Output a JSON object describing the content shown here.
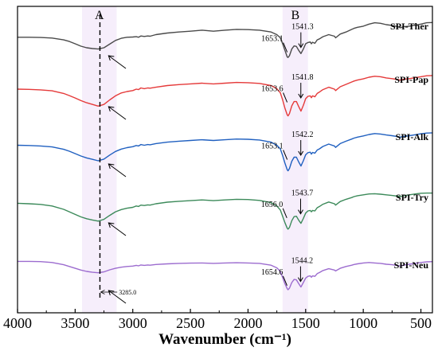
{
  "chart_data": {
    "type": "line",
    "xlabel": "Wavenumber (cm⁻¹)",
    "xlim": [
      4000,
      400
    ],
    "x_reversed": true,
    "xticks": [
      4000,
      3500,
      3000,
      2500,
      2000,
      1500,
      1000,
      500
    ],
    "y_ticks_shown": false,
    "band_labels": [
      "A",
      "B"
    ],
    "bands_cm": [
      [
        3440,
        3140
      ],
      [
        1700,
        1480
      ]
    ],
    "dashed_line_x": 3285,
    "annotation": "3285.0",
    "series": [
      {
        "name": "SPI-Ther",
        "color": "#4a4a4a",
        "peaks": [
          1653.1,
          1541.3
        ],
        "x": [
          4000,
          3900,
          3800,
          3700,
          3600,
          3550,
          3500,
          3450,
          3400,
          3350,
          3300,
          3250,
          3200,
          3150,
          3100,
          3050,
          3000,
          2970,
          2950,
          2930,
          2900,
          2870,
          2850,
          2800,
          2700,
          2600,
          2500,
          2400,
          2300,
          2200,
          2100,
          2000,
          1900,
          1800,
          1750,
          1720,
          1700,
          1680,
          1660,
          1653,
          1640,
          1620,
          1600,
          1580,
          1560,
          1541,
          1520,
          1500,
          1480,
          1460,
          1450,
          1440,
          1420,
          1400,
          1380,
          1350,
          1300,
          1250,
          1240,
          1200,
          1150,
          1100,
          1080,
          1050,
          1000,
          950,
          900,
          850,
          800,
          750,
          700,
          680,
          650,
          600,
          550,
          500,
          450,
          400
        ],
        "y": [
          0.6,
          0.6,
          0.61,
          0.63,
          0.7,
          0.76,
          0.85,
          0.94,
          1.0,
          1.03,
          1.05,
          1.0,
          0.86,
          0.72,
          0.64,
          0.6,
          0.59,
          0.58,
          0.6,
          0.55,
          0.57,
          0.55,
          0.56,
          0.5,
          0.44,
          0.4,
          0.37,
          0.33,
          0.37,
          0.33,
          0.3,
          0.31,
          0.33,
          0.4,
          0.5,
          0.62,
          0.85,
          1.1,
          1.35,
          1.37,
          1.3,
          1.05,
          0.93,
          0.95,
          1.1,
          1.22,
          1.05,
          0.85,
          0.8,
          0.78,
          0.85,
          0.79,
          0.83,
          0.7,
          0.66,
          0.58,
          0.5,
          0.56,
          0.62,
          0.48,
          0.4,
          0.3,
          0.26,
          0.22,
          0.18,
          0.1,
          0.05,
          0.07,
          0.12,
          0.15,
          0.2,
          0.24,
          0.2,
          0.18,
          0.14,
          0.1,
          0.05,
          0.04
        ]
      },
      {
        "name": "SPI-Pap",
        "color": "#e53a3a",
        "peaks": [
          1653.6,
          1541.8
        ],
        "x": [
          4000,
          3900,
          3800,
          3700,
          3600,
          3550,
          3500,
          3450,
          3400,
          3350,
          3300,
          3250,
          3200,
          3150,
          3100,
          3050,
          3000,
          2970,
          2950,
          2930,
          2900,
          2870,
          2850,
          2800,
          2700,
          2600,
          2500,
          2400,
          2300,
          2200,
          2100,
          2000,
          1900,
          1800,
          1750,
          1720,
          1700,
          1680,
          1660,
          1653,
          1640,
          1620,
          1600,
          1580,
          1560,
          1541,
          1520,
          1500,
          1480,
          1460,
          1450,
          1440,
          1420,
          1400,
          1380,
          1350,
          1300,
          1250,
          1240,
          1200,
          1150,
          1100,
          1080,
          1050,
          1000,
          950,
          900,
          850,
          800,
          750,
          700,
          680,
          650,
          600,
          550,
          500,
          450,
          400
        ],
        "y": [
          0.6,
          0.61,
          0.63,
          0.67,
          0.78,
          0.87,
          0.97,
          1.08,
          1.17,
          1.24,
          1.31,
          1.24,
          1.05,
          0.88,
          0.76,
          0.7,
          0.66,
          0.6,
          0.62,
          0.55,
          0.58,
          0.55,
          0.56,
          0.52,
          0.45,
          0.41,
          0.38,
          0.35,
          0.38,
          0.35,
          0.32,
          0.33,
          0.36,
          0.45,
          0.58,
          0.75,
          1.05,
          1.4,
          1.68,
          1.72,
          1.62,
          1.3,
          1.12,
          1.12,
          1.33,
          1.52,
          1.28,
          1.0,
          0.9,
          0.88,
          0.96,
          0.88,
          0.92,
          0.78,
          0.72,
          0.62,
          0.52,
          0.6,
          0.66,
          0.5,
          0.4,
          0.3,
          0.26,
          0.22,
          0.17,
          0.1,
          0.06,
          0.08,
          0.13,
          0.16,
          0.2,
          0.22,
          0.19,
          0.16,
          0.12,
          0.08,
          0.04,
          0.03
        ]
      },
      {
        "name": "SPI-Alk",
        "color": "#2060c0",
        "peaks": [
          1653.1,
          1542.2
        ],
        "x": [
          4000,
          3900,
          3800,
          3700,
          3600,
          3550,
          3500,
          3450,
          3400,
          3350,
          3300,
          3250,
          3200,
          3150,
          3100,
          3050,
          3000,
          2970,
          2950,
          2930,
          2900,
          2870,
          2850,
          2800,
          2700,
          2600,
          2500,
          2400,
          2300,
          2200,
          2100,
          2000,
          1900,
          1800,
          1750,
          1720,
          1700,
          1680,
          1660,
          1653,
          1640,
          1620,
          1600,
          1580,
          1560,
          1541,
          1520,
          1500,
          1480,
          1460,
          1450,
          1440,
          1420,
          1400,
          1380,
          1350,
          1300,
          1250,
          1240,
          1200,
          1150,
          1100,
          1080,
          1050,
          1000,
          950,
          900,
          850,
          800,
          750,
          700,
          680,
          650,
          600,
          550,
          500,
          450,
          400
        ],
        "y": [
          0.55,
          0.56,
          0.58,
          0.62,
          0.72,
          0.8,
          0.9,
          1.0,
          1.08,
          1.14,
          1.2,
          1.13,
          0.96,
          0.81,
          0.71,
          0.65,
          0.61,
          0.56,
          0.58,
          0.52,
          0.55,
          0.52,
          0.53,
          0.48,
          0.42,
          0.38,
          0.35,
          0.32,
          0.35,
          0.32,
          0.29,
          0.3,
          0.33,
          0.42,
          0.55,
          0.7,
          0.98,
          1.3,
          1.58,
          1.62,
          1.52,
          1.22,
          1.05,
          1.05,
          1.25,
          1.42,
          1.2,
          0.95,
          0.86,
          0.84,
          0.92,
          0.85,
          0.88,
          0.75,
          0.7,
          0.6,
          0.5,
          0.58,
          0.64,
          0.48,
          0.38,
          0.29,
          0.25,
          0.21,
          0.16,
          0.1,
          0.06,
          0.08,
          0.12,
          0.15,
          0.19,
          0.21,
          0.18,
          0.15,
          0.11,
          0.07,
          0.04,
          0.03
        ]
      },
      {
        "name": "SPI-Try",
        "color": "#3c8a5a",
        "peaks": [
          1656.0,
          1543.7
        ],
        "x": [
          4000,
          3900,
          3800,
          3700,
          3600,
          3550,
          3500,
          3450,
          3400,
          3350,
          3300,
          3250,
          3200,
          3150,
          3100,
          3050,
          3000,
          2970,
          2950,
          2930,
          2900,
          2870,
          2850,
          2800,
          2700,
          2600,
          2500,
          2400,
          2300,
          2200,
          2100,
          2000,
          1900,
          1800,
          1750,
          1720,
          1700,
          1680,
          1660,
          1653,
          1640,
          1620,
          1600,
          1580,
          1560,
          1541,
          1520,
          1500,
          1480,
          1460,
          1450,
          1440,
          1420,
          1400,
          1380,
          1350,
          1300,
          1250,
          1240,
          1200,
          1150,
          1100,
          1080,
          1050,
          1000,
          950,
          900,
          850,
          800,
          750,
          700,
          680,
          650,
          600,
          550,
          500,
          450,
          400
        ],
        "y": [
          0.48,
          0.5,
          0.53,
          0.6,
          0.75,
          0.86,
          0.98,
          1.09,
          1.17,
          1.23,
          1.28,
          1.2,
          1.02,
          0.86,
          0.76,
          0.7,
          0.66,
          0.6,
          0.62,
          0.56,
          0.58,
          0.55,
          0.56,
          0.5,
          0.43,
          0.39,
          0.36,
          0.33,
          0.36,
          0.33,
          0.3,
          0.31,
          0.35,
          0.45,
          0.6,
          0.78,
          1.06,
          1.35,
          1.6,
          1.64,
          1.56,
          1.26,
          1.08,
          1.06,
          1.24,
          1.38,
          1.16,
          0.92,
          0.82,
          0.8,
          0.86,
          0.8,
          0.82,
          0.68,
          0.62,
          0.52,
          0.42,
          0.5,
          0.56,
          0.4,
          0.3,
          0.22,
          0.18,
          0.14,
          0.1,
          0.06,
          0.05,
          0.07,
          0.1,
          0.13,
          0.16,
          0.18,
          0.14,
          0.1,
          0.06,
          0.03,
          0.02,
          0.02
        ]
      },
      {
        "name": "SPI-Neu",
        "color": "#9c6ccf",
        "peaks": [
          1654.6,
          1544.2
        ],
        "x": [
          4000,
          3900,
          3800,
          3700,
          3600,
          3550,
          3500,
          3450,
          3400,
          3350,
          3300,
          3250,
          3200,
          3150,
          3100,
          3050,
          3000,
          2970,
          2950,
          2930,
          2900,
          2870,
          2850,
          2800,
          2700,
          2600,
          2500,
          2400,
          2300,
          2200,
          2100,
          2000,
          1900,
          1800,
          1750,
          1720,
          1700,
          1680,
          1660,
          1653,
          1640,
          1620,
          1600,
          1580,
          1560,
          1541,
          1520,
          1500,
          1480,
          1460,
          1450,
          1440,
          1420,
          1400,
          1380,
          1350,
          1300,
          1250,
          1240,
          1200,
          1150,
          1100,
          1080,
          1050,
          1000,
          950,
          900,
          850,
          800,
          750,
          700,
          680,
          650,
          600,
          550,
          500,
          450,
          400
        ],
        "y": [
          0.05,
          0.05,
          0.06,
          0.1,
          0.2,
          0.28,
          0.36,
          0.44,
          0.5,
          0.54,
          0.56,
          0.52,
          0.43,
          0.36,
          0.31,
          0.28,
          0.26,
          0.23,
          0.25,
          0.21,
          0.23,
          0.21,
          0.22,
          0.19,
          0.16,
          0.14,
          0.13,
          0.12,
          0.14,
          0.12,
          0.11,
          0.12,
          0.14,
          0.22,
          0.34,
          0.5,
          0.78,
          1.05,
          1.28,
          1.32,
          1.25,
          1.0,
          0.86,
          0.88,
          1.05,
          1.2,
          1.0,
          0.8,
          0.72,
          0.7,
          0.76,
          0.7,
          0.72,
          0.6,
          0.55,
          0.46,
          0.38,
          0.44,
          0.48,
          0.36,
          0.28,
          0.22,
          0.19,
          0.16,
          0.12,
          0.1,
          0.12,
          0.14,
          0.18,
          0.2,
          0.24,
          0.26,
          0.22,
          0.18,
          0.14,
          0.1,
          0.07,
          0.06
        ]
      }
    ]
  }
}
